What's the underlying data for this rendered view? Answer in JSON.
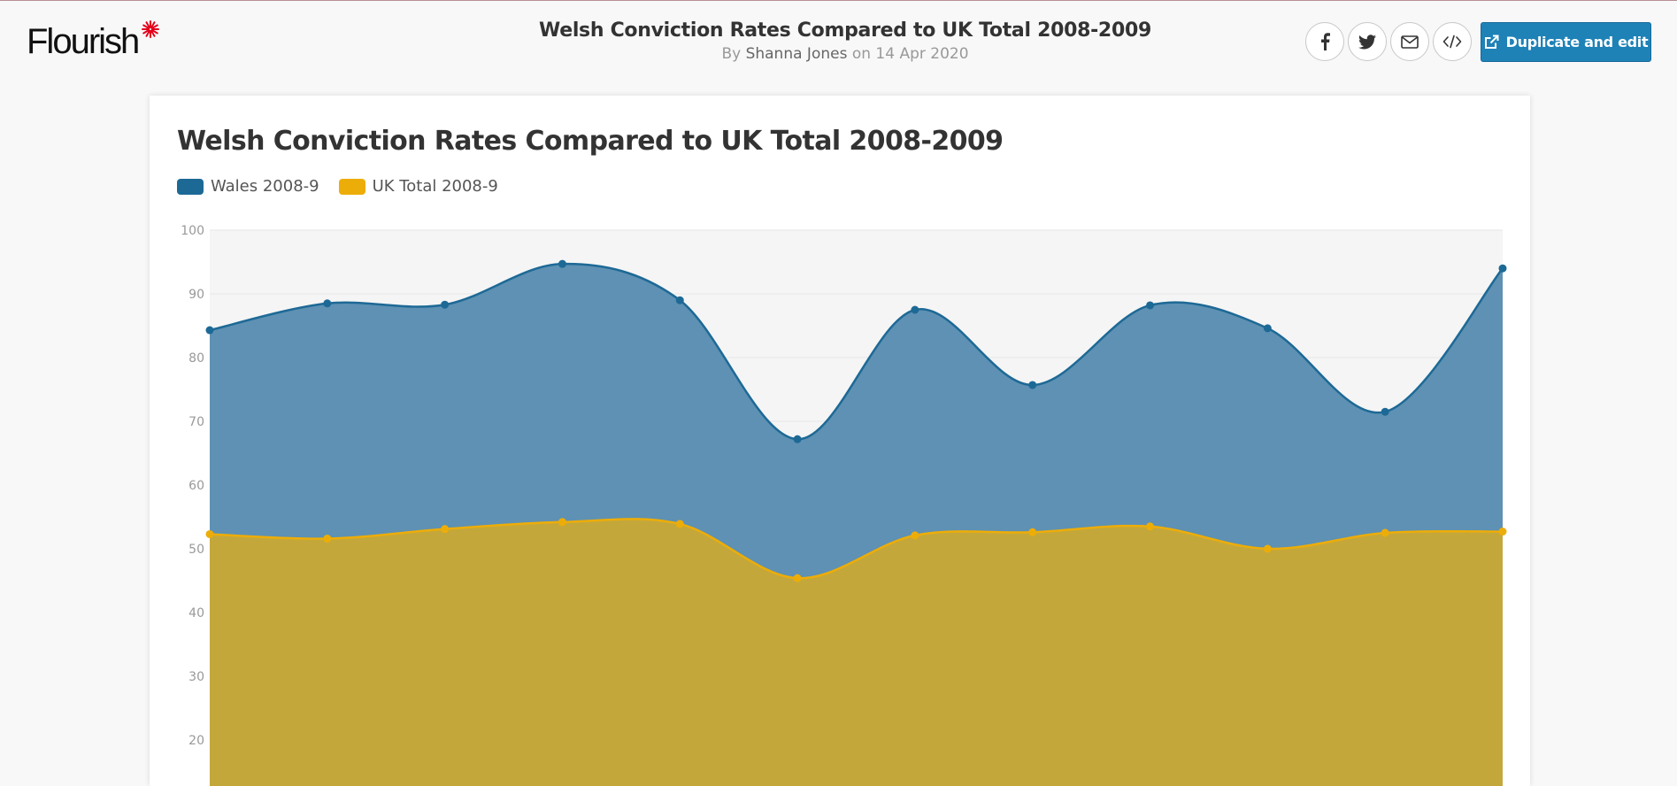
{
  "header": {
    "title": "Welsh Conviction Rates Compared to UK Total 2008-2009",
    "by_prefix": "By",
    "author": "Shanna Jones",
    "date_text": "on 14 Apr 2020",
    "duplicate_label": "Duplicate and edit"
  },
  "logo": {
    "text": "Flourish",
    "star_color": "#e3001b"
  },
  "share_icons": [
    "facebook-icon",
    "twitter-icon",
    "email-icon",
    "embed-code-icon"
  ],
  "chart_data": {
    "type": "area",
    "title": "Welsh Conviction Rates Compared to UK Total 2008-2009",
    "ylim": [
      0,
      100
    ],
    "yticks": [
      20,
      30,
      40,
      50,
      60,
      70,
      80,
      90,
      100
    ],
    "grid": true,
    "legend_position": "top-left",
    "series": [
      {
        "name": "Wales 2008-9",
        "color": "#1d6996",
        "values": [
          84.3,
          88.5,
          88.3,
          94.7,
          89.0,
          67.2,
          87.5,
          75.7,
          88.2,
          84.6,
          71.5,
          94.0
        ]
      },
      {
        "name": "UK Total 2008-9",
        "color": "#edad08",
        "values": [
          52.3,
          51.6,
          53.1,
          54.2,
          53.9,
          45.4,
          52.1,
          52.6,
          53.5,
          50.0,
          52.5,
          52.7
        ]
      }
    ]
  }
}
